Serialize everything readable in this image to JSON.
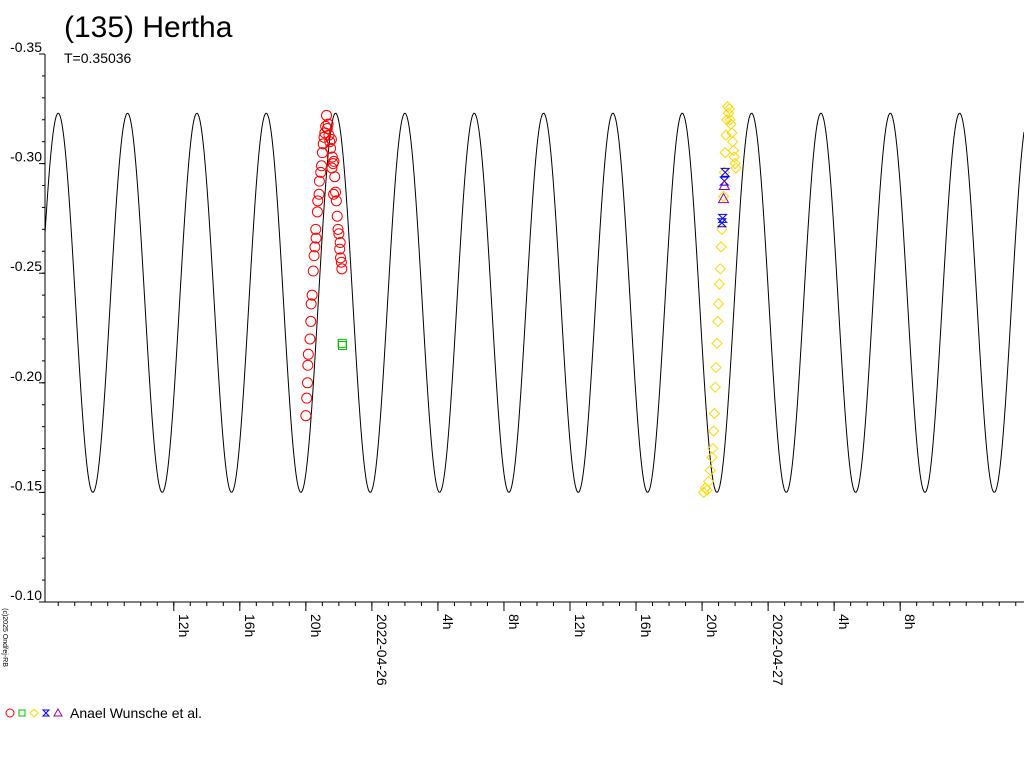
{
  "title": "(135) Hertha",
  "subtitle": "T=0.35036",
  "copyright": "(c)2025 Ondřej-RB",
  "legend": {
    "text": "Anael Wunsche et al.",
    "symbols": [
      {
        "shape": "circle",
        "color": "#ff0000"
      },
      {
        "shape": "square",
        "color": "#00c000"
      },
      {
        "shape": "diamond",
        "color": "#ffd700"
      },
      {
        "shape": "hourglass",
        "color": "#0000ff"
      },
      {
        "shape": "triangle",
        "color": "#a000a0"
      }
    ]
  },
  "chart_data": {
    "type": "line",
    "y_inverted": true,
    "ylim": [
      -0.35,
      -0.1
    ],
    "yticks": [
      "-0.35",
      "-0.30",
      "-0.25",
      "-0.20",
      "-0.15",
      "-0.10"
    ],
    "xlim_hours": [
      4.2,
      63.5
    ],
    "x_ticks": [
      {
        "hour": 12,
        "label": "12h"
      },
      {
        "hour": 16,
        "label": "16h"
      },
      {
        "hour": 20,
        "label": "20h"
      },
      {
        "hour": 24,
        "label": "2022-04-26"
      },
      {
        "hour": 28,
        "label": "4h"
      },
      {
        "hour": 32,
        "label": "8h"
      },
      {
        "hour": 36,
        "label": "12h"
      },
      {
        "hour": 40,
        "label": "16h"
      },
      {
        "hour": 44,
        "label": "20h"
      },
      {
        "hour": 48,
        "label": "2022-04-27"
      },
      {
        "hour": 52,
        "label": "4h"
      },
      {
        "hour": 56,
        "label": "8h"
      }
    ],
    "model_curve": {
      "period_hours": 4.2,
      "mag_min": -0.323,
      "mag_max": -0.15,
      "peak_hour": 5.0
    },
    "series": [
      {
        "shape": "circle",
        "color": "#ff0000",
        "points": [
          [
            20.0,
            -0.185
          ],
          [
            20.05,
            -0.193
          ],
          [
            20.1,
            -0.2
          ],
          [
            20.12,
            -0.208
          ],
          [
            20.15,
            -0.213
          ],
          [
            20.25,
            -0.22
          ],
          [
            20.3,
            -0.228
          ],
          [
            20.32,
            -0.236
          ],
          [
            20.38,
            -0.24
          ],
          [
            20.45,
            -0.251
          ],
          [
            20.5,
            -0.258
          ],
          [
            20.55,
            -0.262
          ],
          [
            20.6,
            -0.27
          ],
          [
            20.62,
            -0.266
          ],
          [
            20.7,
            -0.278
          ],
          [
            20.72,
            -0.283
          ],
          [
            20.8,
            -0.286
          ],
          [
            20.82,
            -0.292
          ],
          [
            20.9,
            -0.296
          ],
          [
            20.95,
            -0.299
          ],
          [
            21.0,
            -0.305
          ],
          [
            21.05,
            -0.309
          ],
          [
            21.1,
            -0.312
          ],
          [
            21.15,
            -0.314
          ],
          [
            21.2,
            -0.317
          ],
          [
            21.25,
            -0.322
          ],
          [
            21.3,
            -0.316
          ],
          [
            21.35,
            -0.318
          ],
          [
            21.4,
            -0.313
          ],
          [
            21.45,
            -0.31
          ],
          [
            21.5,
            -0.307
          ],
          [
            21.55,
            -0.311
          ],
          [
            21.6,
            -0.303
          ],
          [
            21.65,
            -0.3
          ],
          [
            21.7,
            -0.301
          ],
          [
            21.75,
            -0.294
          ],
          [
            21.8,
            -0.287
          ],
          [
            21.85,
            -0.283
          ],
          [
            21.9,
            -0.276
          ],
          [
            21.95,
            -0.27
          ],
          [
            22.0,
            -0.268
          ],
          [
            22.05,
            -0.261
          ],
          [
            22.1,
            -0.257
          ],
          [
            22.15,
            -0.255
          ],
          [
            22.18,
            -0.252
          ],
          [
            21.58,
            -0.298
          ],
          [
            21.68,
            -0.286
          ],
          [
            22.08,
            -0.264
          ]
        ]
      },
      {
        "shape": "square",
        "color": "#00c000",
        "points": [
          [
            22.2,
            -0.218
          ],
          [
            22.22,
            -0.217
          ]
        ]
      },
      {
        "shape": "diamond",
        "color": "#ffd700",
        "points": [
          [
            44.1,
            -0.15
          ],
          [
            44.2,
            -0.152
          ],
          [
            44.3,
            -0.151
          ],
          [
            44.4,
            -0.155
          ],
          [
            44.5,
            -0.16
          ],
          [
            44.6,
            -0.166
          ],
          [
            44.65,
            -0.17
          ],
          [
            44.7,
            -0.178
          ],
          [
            44.75,
            -0.186
          ],
          [
            44.8,
            -0.198
          ],
          [
            44.85,
            -0.207
          ],
          [
            44.9,
            -0.218
          ],
          [
            44.95,
            -0.228
          ],
          [
            45.0,
            -0.236
          ],
          [
            45.05,
            -0.245
          ],
          [
            45.1,
            -0.252
          ],
          [
            45.15,
            -0.262
          ],
          [
            45.2,
            -0.27
          ],
          [
            45.3,
            -0.285
          ],
          [
            45.35,
            -0.296
          ],
          [
            45.4,
            -0.305
          ],
          [
            45.45,
            -0.313
          ],
          [
            45.5,
            -0.32
          ],
          [
            45.55,
            -0.326
          ],
          [
            45.6,
            -0.323
          ],
          [
            45.65,
            -0.325
          ],
          [
            45.7,
            -0.32
          ],
          [
            45.75,
            -0.318
          ],
          [
            45.8,
            -0.314
          ],
          [
            45.85,
            -0.31
          ],
          [
            45.9,
            -0.306
          ],
          [
            45.95,
            -0.303
          ],
          [
            46.0,
            -0.3
          ],
          [
            46.05,
            -0.298
          ]
        ]
      },
      {
        "shape": "hourglass",
        "color": "#0000ff",
        "points": [
          [
            45.2,
            -0.273
          ],
          [
            45.25,
            -0.275
          ],
          [
            45.35,
            -0.292
          ],
          [
            45.4,
            -0.296
          ]
        ]
      },
      {
        "shape": "triangle",
        "color": "#a000a0",
        "points": [
          [
            45.3,
            -0.284
          ],
          [
            45.35,
            -0.29
          ]
        ]
      }
    ]
  }
}
